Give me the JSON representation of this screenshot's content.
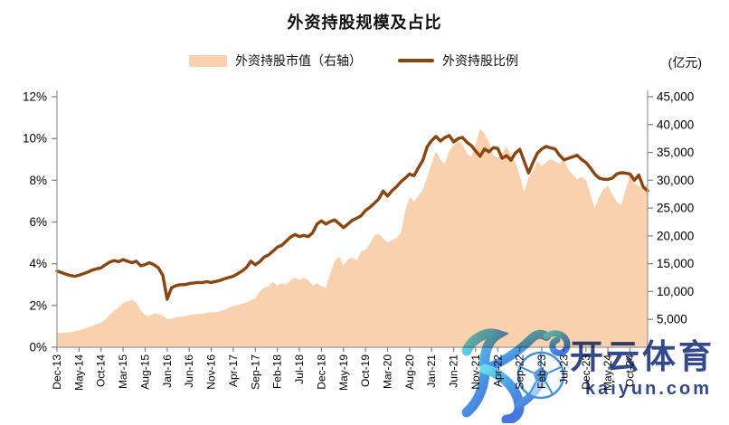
{
  "chart_data": {
    "type": "combo",
    "title": "外资持股规模及占比",
    "right_axis_unit": "(亿元)",
    "legend": [
      {
        "label": "外资持股市值（右轴）",
        "swatch": "area",
        "color": "#F9D1AE"
      },
      {
        "label": "外资持股比例",
        "swatch": "line",
        "color": "#8B450F"
      }
    ],
    "x_unit": "month",
    "x_tick_every": 5,
    "x_tick_labels": [
      "Dec-13",
      "May-14",
      "Oct-14",
      "Mar-15",
      "Aug-15",
      "Jan-16",
      "Jun-16",
      "Nov-16",
      "Apr-17",
      "Sep-17",
      "Feb-18",
      "Jul-18",
      "Dec-18",
      "May-19",
      "Oct-19",
      "Mar-20",
      "Aug-20",
      "Jan-21",
      "Jun-21",
      "Nov-21",
      "Apr-22",
      "Sep-22",
      "Feb-23",
      "Jul-23",
      "Dec-23",
      "May-24",
      "Oct-24"
    ],
    "left_axis": {
      "min": 0,
      "max": 12,
      "step": 2,
      "tick_labels": [
        "0%",
        "2%",
        "4%",
        "6%",
        "8%",
        "10%",
        "12%"
      ]
    },
    "right_axis": {
      "min": 0,
      "max": 45000,
      "step": 5000,
      "tick_labels": [
        "5,000",
        "10,000",
        "15,000",
        "20,000",
        "25,000",
        "30,000",
        "35,000",
        "40,000",
        "45,000"
      ]
    },
    "series": [
      {
        "name": "外资持股市值（右轴）",
        "type": "area",
        "axis": "right",
        "color": "#F9D1AE",
        "values": [
          2550,
          2600,
          2650,
          2700,
          2850,
          3050,
          3250,
          3550,
          3850,
          4150,
          4450,
          5000,
          5900,
          6600,
          7100,
          7960,
          8250,
          8500,
          8000,
          6600,
          5800,
          5600,
          6100,
          5950,
          5700,
          5000,
          5150,
          5400,
          5450,
          5550,
          5800,
          5900,
          6000,
          6000,
          6200,
          6300,
          6250,
          6450,
          6700,
          7100,
          7400,
          7550,
          7800,
          8100,
          8450,
          8800,
          10000,
          10700,
          10950,
          11700,
          11100,
          11500,
          11300,
          12000,
          12550,
          12100,
          12500,
          12050,
          11100,
          11500,
          11000,
          10700,
          13200,
          15500,
          16350,
          14700,
          15800,
          16100,
          15600,
          17200,
          17450,
          18600,
          20100,
          20400,
          19600,
          18800,
          19300,
          19600,
          20500,
          24500,
          27000,
          26200,
          27200,
          28300,
          30500,
          33000,
          35200,
          33700,
          32900,
          35200,
          36300,
          37200,
          36400,
          34800,
          34200,
          36500,
          39300,
          38300,
          36800,
          34500,
          34100,
          34800,
          36000,
          34600,
          33400,
          30800,
          27900,
          30500,
          31600,
          33400,
          32600,
          33200,
          33800,
          33400,
          33000,
          33800,
          32000,
          31000,
          30200,
          30600,
          30100,
          27600,
          25000,
          27000,
          28400,
          29000,
          27400,
          26100,
          25600,
          28200,
          31200,
          29400,
          29000,
          28400,
          29350
        ]
      },
      {
        "name": "外资持股比例",
        "type": "line",
        "axis": "left",
        "color": "#8B450F",
        "values": [
          3.65,
          3.58,
          3.5,
          3.44,
          3.4,
          3.45,
          3.52,
          3.6,
          3.7,
          3.76,
          3.8,
          3.95,
          4.08,
          4.15,
          4.1,
          4.2,
          4.12,
          4.05,
          4.12,
          3.9,
          3.96,
          4.05,
          3.95,
          3.8,
          3.45,
          2.3,
          2.85,
          2.95,
          3.0,
          3.0,
          3.05,
          3.08,
          3.1,
          3.1,
          3.14,
          3.1,
          3.15,
          3.2,
          3.28,
          3.34,
          3.4,
          3.52,
          3.65,
          3.82,
          4.12,
          3.95,
          4.1,
          4.32,
          4.42,
          4.6,
          4.8,
          4.88,
          5.08,
          5.28,
          5.4,
          5.3,
          5.36,
          5.3,
          5.48,
          5.9,
          6.05,
          5.9,
          6.02,
          6.1,
          5.92,
          5.73,
          5.9,
          6.08,
          6.18,
          6.3,
          6.55,
          6.7,
          6.9,
          7.1,
          7.48,
          7.24,
          7.5,
          7.68,
          7.92,
          8.1,
          8.3,
          8.22,
          8.6,
          8.95,
          9.6,
          9.9,
          10.1,
          9.88,
          10.04,
          10.14,
          9.84,
          10.0,
          10.05,
          9.82,
          9.66,
          9.4,
          9.15,
          9.5,
          9.36,
          9.56,
          9.52,
          9.05,
          9.18,
          8.96,
          9.3,
          9.48,
          8.9,
          8.35,
          8.85,
          9.3,
          9.5,
          9.62,
          9.55,
          9.5,
          9.2,
          8.98,
          9.05,
          9.12,
          9.2,
          9.0,
          8.85,
          8.6,
          8.3,
          8.1,
          8.05,
          8.04,
          8.1,
          8.3,
          8.36,
          8.34,
          8.3,
          8.0,
          8.25,
          7.68,
          7.5
        ]
      }
    ],
    "style": {
      "axis_line_color": "#A6A6A6",
      "tick_color": "#808080",
      "label_color": "#000000",
      "background": "#FFFFFF"
    }
  },
  "watermark": {
    "brand": "开云体育",
    "domain": "kaiyun.com",
    "logo": "kaiyun-k-soccer-logo",
    "text_color": "#16307C"
  }
}
